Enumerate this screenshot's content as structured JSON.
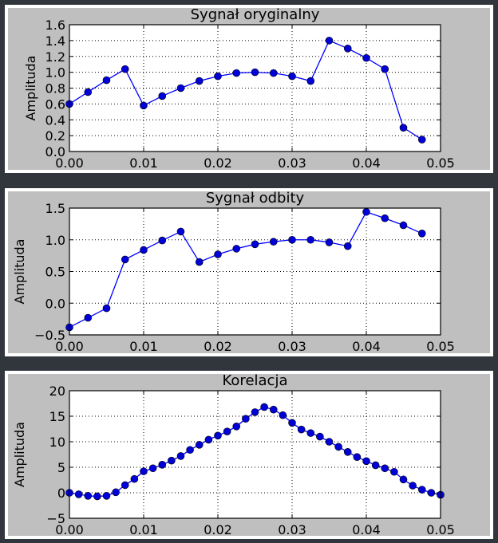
{
  "chart_data": [
    {
      "type": "line",
      "title": "Sygnał oryginalny",
      "xlabel": "",
      "ylabel": "Amplituda",
      "xlim": [
        0,
        0.05
      ],
      "ylim": [
        0,
        1.6
      ],
      "grid": true,
      "xticks": [
        0,
        0.01,
        0.02,
        0.03,
        0.04,
        0.05
      ],
      "xtick_labels": [
        "0.00",
        "0.01",
        "0.02",
        "0.03",
        "0.04",
        "0.05"
      ],
      "yticks": [
        0,
        0.2,
        0.4,
        0.6,
        0.8,
        1.0,
        1.2,
        1.4,
        1.6
      ],
      "ytick_labels": [
        "0.0",
        "0.2",
        "0.4",
        "0.6",
        "0.8",
        "1.0",
        "1.2",
        "1.4",
        "1.6"
      ],
      "color": "#0000ff",
      "marker_color": "#0000d8",
      "x": [
        0,
        0.0025,
        0.005,
        0.0075,
        0.01,
        0.0125,
        0.015,
        0.0175,
        0.02,
        0.0225,
        0.025,
        0.0275,
        0.03,
        0.0325,
        0.035,
        0.0375,
        0.04,
        0.0425,
        0.045,
        0.0475
      ],
      "y": [
        0.6,
        0.75,
        0.9,
        1.04,
        0.58,
        0.7,
        0.8,
        0.89,
        0.95,
        0.99,
        1.0,
        0.99,
        0.95,
        0.89,
        1.4,
        1.3,
        1.18,
        1.04,
        0.3,
        0.15
      ]
    },
    {
      "type": "line",
      "title": "Sygnał odbity",
      "xlabel": "",
      "ylabel": "Amplituda",
      "xlim": [
        0,
        0.05
      ],
      "ylim": [
        -0.5,
        1.5
      ],
      "grid": true,
      "xticks": [
        0,
        0.01,
        0.02,
        0.03,
        0.04,
        0.05
      ],
      "xtick_labels": [
        "0.00",
        "0.01",
        "0.02",
        "0.03",
        "0.04",
        "0.05"
      ],
      "yticks": [
        -0.5,
        0.0,
        0.5,
        1.0,
        1.5
      ],
      "ytick_labels": [
        "−0.5",
        "0.0",
        "0.5",
        "1.0",
        "1.5"
      ],
      "color": "#0000ff",
      "marker_color": "#0000d8",
      "x": [
        0,
        0.0025,
        0.005,
        0.0075,
        0.01,
        0.0125,
        0.015,
        0.0175,
        0.02,
        0.0225,
        0.025,
        0.0275,
        0.03,
        0.0325,
        0.035,
        0.0375,
        0.04,
        0.0425,
        0.045,
        0.0475
      ],
      "y": [
        -0.38,
        -0.23,
        -0.08,
        0.69,
        0.84,
        0.99,
        1.13,
        0.65,
        0.77,
        0.86,
        0.93,
        0.97,
        1.0,
        1.0,
        0.96,
        0.9,
        1.44,
        1.34,
        1.23,
        1.1
      ]
    },
    {
      "type": "line",
      "title": "Korelacja",
      "xlabel": "",
      "ylabel": "Amplituda",
      "xlim": [
        0,
        0.05
      ],
      "ylim": [
        -5,
        20
      ],
      "grid": true,
      "xticks": [
        0,
        0.01,
        0.02,
        0.03,
        0.04,
        0.05
      ],
      "xtick_labels": [
        "0.00",
        "0.01",
        "0.02",
        "0.03",
        "0.04",
        "0.05"
      ],
      "yticks": [
        -5,
        0,
        5,
        10,
        15,
        20
      ],
      "ytick_labels": [
        "−5",
        "0",
        "5",
        "10",
        "15",
        "20"
      ],
      "color": "#0000ff",
      "marker_color": "#0000d8",
      "x": [
        0,
        0.00125,
        0.0025,
        0.00375,
        0.005,
        0.00625,
        0.0075,
        0.00875,
        0.01,
        0.01125,
        0.0125,
        0.01375,
        0.015,
        0.01625,
        0.0175,
        0.01875,
        0.02,
        0.02125,
        0.0225,
        0.02375,
        0.025,
        0.02625,
        0.0275,
        0.02875,
        0.03,
        0.03125,
        0.0325,
        0.03375,
        0.035,
        0.03625,
        0.0375,
        0.03875,
        0.04,
        0.04125,
        0.0425,
        0.04375,
        0.045,
        0.04625,
        0.0475,
        0.04875,
        0.05
      ],
      "y": [
        0.0,
        -0.3,
        -0.6,
        -0.7,
        -0.6,
        0.1,
        1.5,
        2.7,
        4.2,
        4.8,
        5.5,
        6.3,
        7.2,
        8.4,
        9.4,
        10.4,
        11.2,
        12.0,
        13.0,
        14.5,
        15.8,
        16.8,
        16.3,
        15.2,
        13.7,
        12.4,
        11.7,
        11.0,
        10.0,
        9.0,
        8.0,
        7.0,
        6.2,
        5.4,
        4.8,
        4.1,
        2.6,
        1.4,
        0.6,
        0.0,
        -0.4
      ]
    }
  ]
}
